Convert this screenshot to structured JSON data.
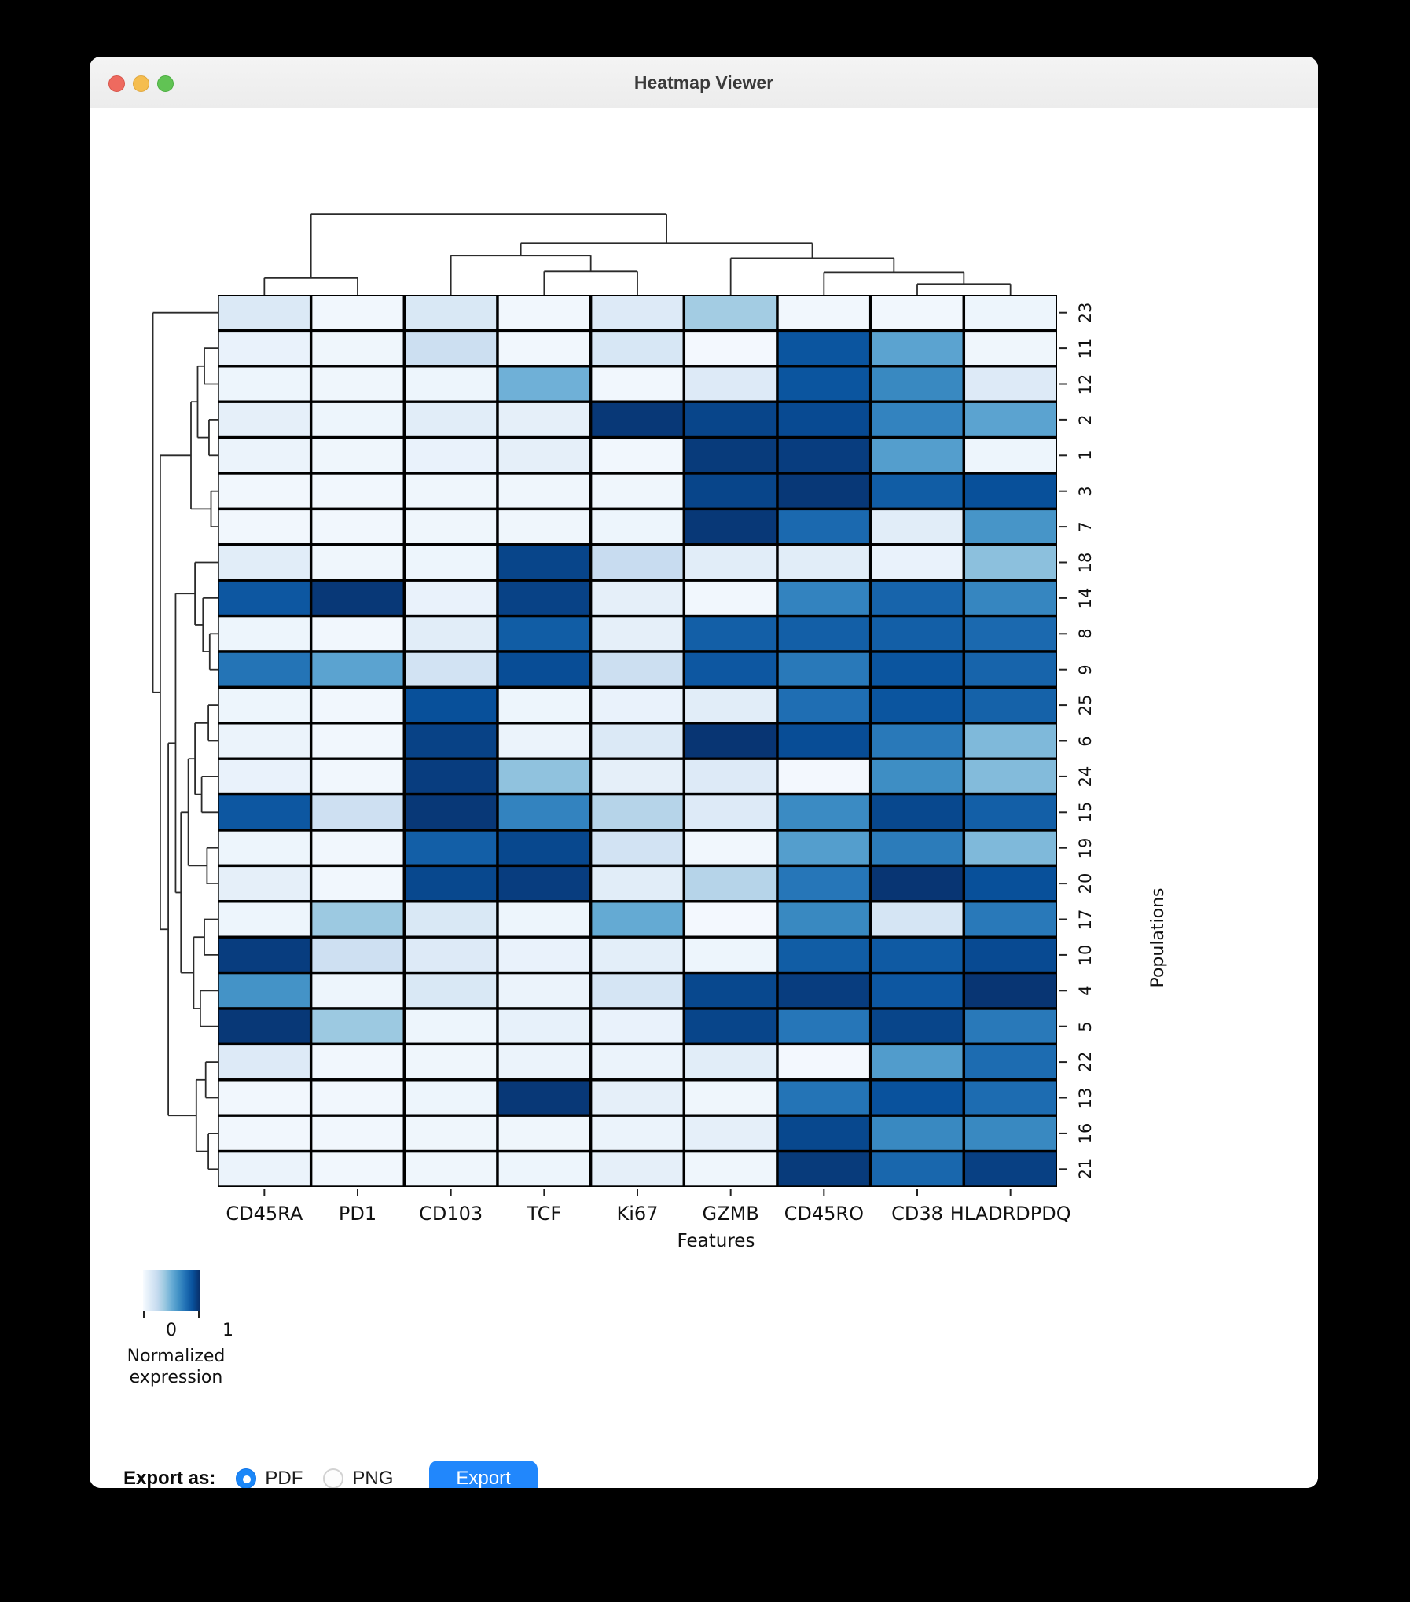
{
  "window": {
    "title": "Heatmap Viewer"
  },
  "chart_data": {
    "type": "heatmap",
    "xlabel": "Features",
    "ylabel": "Populations",
    "columns": [
      "CD45RA",
      "PD1",
      "CD103",
      "TCF",
      "Ki67",
      "GZMB",
      "CD45RO",
      "CD38",
      "HLADRDPDQ"
    ],
    "rows": [
      "23",
      "11",
      "12",
      "2",
      "1",
      "3",
      "7",
      "18",
      "14",
      "8",
      "9",
      "25",
      "6",
      "24",
      "15",
      "19",
      "20",
      "17",
      "10",
      "4",
      "5",
      "22",
      "13",
      "16",
      "21"
    ],
    "values": [
      [
        0.14,
        0.03,
        0.15,
        0.03,
        0.13,
        0.36,
        0.03,
        0.03,
        0.05
      ],
      [
        0.07,
        0.04,
        0.22,
        0.03,
        0.16,
        0.02,
        0.86,
        0.55,
        0.04
      ],
      [
        0.05,
        0.04,
        0.05,
        0.49,
        0.03,
        0.13,
        0.86,
        0.66,
        0.13
      ],
      [
        0.09,
        0.05,
        0.11,
        0.09,
        0.97,
        0.92,
        0.9,
        0.68,
        0.55
      ],
      [
        0.06,
        0.04,
        0.07,
        0.09,
        0.03,
        0.96,
        0.95,
        0.57,
        0.05
      ],
      [
        0.03,
        0.03,
        0.04,
        0.04,
        0.04,
        0.92,
        0.97,
        0.83,
        0.88
      ],
      [
        0.03,
        0.03,
        0.04,
        0.04,
        0.05,
        0.97,
        0.78,
        0.11,
        0.61
      ],
      [
        0.11,
        0.04,
        0.05,
        0.92,
        0.24,
        0.11,
        0.11,
        0.07,
        0.42
      ],
      [
        0.85,
        0.97,
        0.07,
        0.93,
        0.09,
        0.03,
        0.68,
        0.8,
        0.67
      ],
      [
        0.05,
        0.03,
        0.11,
        0.83,
        0.09,
        0.82,
        0.82,
        0.82,
        0.78
      ],
      [
        0.74,
        0.55,
        0.19,
        0.89,
        0.22,
        0.85,
        0.72,
        0.86,
        0.8
      ],
      [
        0.05,
        0.03,
        0.88,
        0.05,
        0.07,
        0.11,
        0.76,
        0.86,
        0.81
      ],
      [
        0.06,
        0.03,
        0.93,
        0.06,
        0.14,
        0.98,
        0.89,
        0.72,
        0.45
      ],
      [
        0.07,
        0.03,
        0.95,
        0.41,
        0.09,
        0.13,
        0.02,
        0.64,
        0.44
      ],
      [
        0.85,
        0.21,
        0.97,
        0.68,
        0.3,
        0.13,
        0.65,
        0.91,
        0.82
      ],
      [
        0.05,
        0.03,
        0.82,
        0.91,
        0.19,
        0.03,
        0.57,
        0.71,
        0.45
      ],
      [
        0.09,
        0.03,
        0.91,
        0.95,
        0.11,
        0.3,
        0.73,
        0.98,
        0.88
      ],
      [
        0.05,
        0.38,
        0.15,
        0.05,
        0.52,
        0.02,
        0.66,
        0.17,
        0.72
      ],
      [
        0.95,
        0.21,
        0.13,
        0.07,
        0.1,
        0.05,
        0.83,
        0.84,
        0.9
      ],
      [
        0.62,
        0.05,
        0.15,
        0.06,
        0.17,
        0.91,
        0.95,
        0.85,
        0.98
      ],
      [
        0.97,
        0.38,
        0.05,
        0.08,
        0.07,
        0.92,
        0.73,
        0.92,
        0.72
      ],
      [
        0.13,
        0.03,
        0.04,
        0.06,
        0.06,
        0.11,
        0.02,
        0.58,
        0.77
      ],
      [
        0.03,
        0.03,
        0.05,
        0.97,
        0.09,
        0.04,
        0.74,
        0.87,
        0.77
      ],
      [
        0.03,
        0.03,
        0.04,
        0.04,
        0.06,
        0.09,
        0.91,
        0.66,
        0.66
      ],
      [
        0.06,
        0.03,
        0.04,
        0.05,
        0.09,
        0.04,
        0.96,
        0.79,
        0.94
      ]
    ],
    "colormap": "Blues",
    "colormap_stops": [
      "#f7fbff",
      "#deebf7",
      "#c6dbef",
      "#9ecae1",
      "#6baed6",
      "#4292c6",
      "#2171b5",
      "#08519c",
      "#08306b"
    ],
    "colorbar": {
      "min": 0,
      "max": 1,
      "tick_labels": [
        "0",
        "1"
      ],
      "label_line1": "Normalized",
      "label_line2": "expression"
    },
    "col_dendrogram": {
      "merges": [
        [
          "L3",
          "L4",
          0.28
        ],
        [
          "L2",
          "M0",
          0.47
        ],
        [
          "L7",
          "L8",
          0.13
        ],
        [
          "L6",
          "M2",
          0.27
        ],
        [
          "L5",
          "M3",
          0.44
        ],
        [
          "M1",
          "M4",
          0.62
        ],
        [
          "L0",
          "L1",
          0.2
        ],
        [
          "M6",
          "M5",
          0.97
        ]
      ]
    },
    "row_dendrogram": {
      "merges": [
        [
          "L1",
          "L2",
          0.2
        ],
        [
          "L3",
          "L4",
          0.13
        ],
        [
          "M0",
          "M1",
          0.3
        ],
        [
          "L5",
          "L6",
          0.1
        ],
        [
          "M2",
          "M3",
          0.4
        ],
        [
          "L9",
          "L10",
          0.12
        ],
        [
          "L8",
          "M5",
          0.22
        ],
        [
          "L7",
          "M6",
          0.34
        ],
        [
          "L11",
          "L12",
          0.14
        ],
        [
          "L13",
          "L14",
          0.24
        ],
        [
          "M8",
          "M9",
          0.34
        ],
        [
          "L15",
          "L16",
          0.16
        ],
        [
          "M10",
          "M11",
          0.44
        ],
        [
          "L17",
          "L18",
          0.2
        ],
        [
          "L19",
          "L20",
          0.26
        ],
        [
          "M13",
          "M14",
          0.36
        ],
        [
          "M12",
          "M15",
          0.55
        ],
        [
          "M7",
          "M16",
          0.63
        ],
        [
          "L21",
          "L22",
          0.18
        ],
        [
          "L23",
          "L24",
          0.14
        ],
        [
          "M18",
          "M19",
          0.32
        ],
        [
          "M17",
          "M20",
          0.74
        ],
        [
          "M4",
          "M21",
          0.86
        ],
        [
          "L0",
          "M22",
          0.97
        ]
      ]
    }
  },
  "export_bar": {
    "label": "Export as:",
    "options": [
      {
        "label": "PDF",
        "selected": true
      },
      {
        "label": "PNG",
        "selected": false
      }
    ],
    "button": "Export"
  },
  "colors": {
    "accent_blue": "#2187fc",
    "radio_blue": "#1b87f8",
    "traffic_red": "#ee6a5f",
    "traffic_yellow": "#f5bd4f",
    "traffic_green": "#61c354",
    "grid_line": "#000000",
    "dendro_line": "#2b2b2b"
  }
}
